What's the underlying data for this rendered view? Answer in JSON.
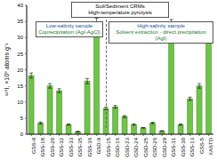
{
  "chart_data": {
    "type": "bar",
    "y_label": "¹²⁹I, ×10⁸ atoms g⁻¹",
    "categories": [
      "GSS-9",
      "GSS-18",
      "GSS-20",
      "GSS-32",
      "GSS-33",
      "GSS-35",
      "GSS-36",
      "GSD-9",
      "GSS-15",
      "GSD-16",
      "GSD-23",
      "GSD-24",
      "GSD-25",
      "GSD-26",
      "GSD-29",
      "GSS-31",
      "GSS-30",
      "GSS-13",
      "GSS-5",
      "XASTD"
    ],
    "values": [
      18.2,
      3.5,
      15.0,
      13.5,
      3.0,
      0.8,
      16.5,
      34.5,
      8.0,
      8.5,
      5.5,
      3.0,
      2.0,
      3.5,
      1.0,
      34.0,
      3.0,
      11.0,
      15.0,
      33.0
    ],
    "errors": [
      0.8,
      0.3,
      0.7,
      0.6,
      0.2,
      0.1,
      0.8,
      1.5,
      0.4,
      0.4,
      0.3,
      0.2,
      0.1,
      0.2,
      0.1,
      1.6,
      0.2,
      0.5,
      0.7,
      1.5
    ],
    "color": "#6cc644",
    "ylim": [
      0,
      40
    ],
    "yticks": [
      0,
      5,
      10,
      15,
      20,
      25,
      30,
      35,
      40
    ],
    "annotations": {
      "top": [
        "Soil/Sediment CRMs",
        "High-temperature pyrolysis"
      ],
      "left": [
        "Low-salinity sample",
        "Coprecipitation (AgI-AgCl)"
      ],
      "right": [
        "High-salinity sample",
        "Solvent extraction - direct precipitation (AgI)"
      ]
    }
  }
}
